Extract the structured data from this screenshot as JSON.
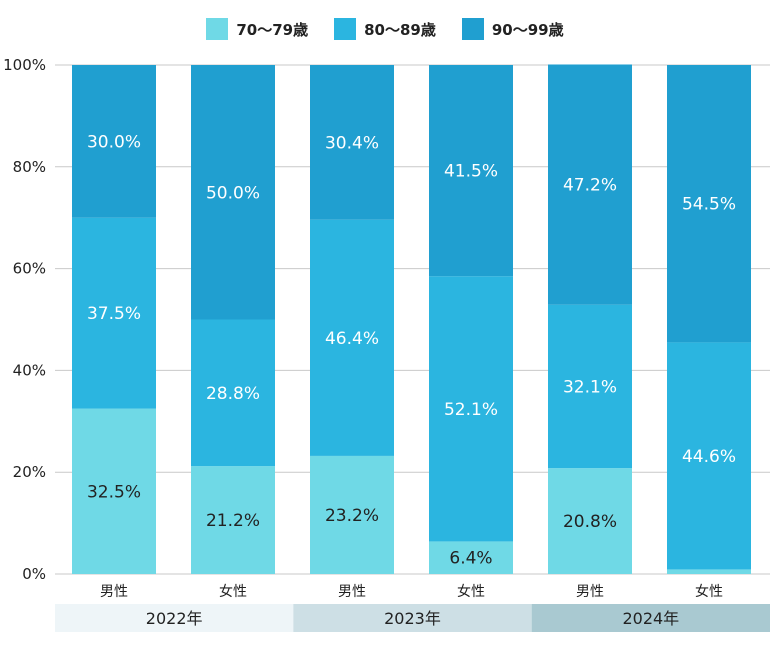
{
  "chart_data": {
    "type": "bar",
    "stacked": true,
    "legend_position": "top",
    "ylim": [
      0,
      100
    ],
    "yticks": [
      "0%",
      "20%",
      "40%",
      "60%",
      "80%",
      "100%"
    ],
    "categories": [
      "男性",
      "女性",
      "男性",
      "女性",
      "男性",
      "女性"
    ],
    "groups": [
      {
        "label": "2022年",
        "color": "#eef5f8"
      },
      {
        "label": "2023年",
        "color": "#cddfe5"
      },
      {
        "label": "2024年",
        "color": "#a9c9d1"
      }
    ],
    "series": [
      {
        "name": "70～79歳",
        "color": "#6fd9e6",
        "values": [
          32.5,
          21.2,
          23.2,
          6.4,
          20.8,
          0.9
        ],
        "labels": [
          "32.5%",
          "21.2%",
          "23.2%",
          "6.4%",
          "20.8%",
          ""
        ],
        "label_color": "#222222"
      },
      {
        "name": "80～89歳",
        "color": "#2bb5e0",
        "values": [
          37.5,
          28.8,
          46.4,
          52.1,
          32.1,
          44.6
        ],
        "labels": [
          "37.5%",
          "28.8%",
          "46.4%",
          "52.1%",
          "32.1%",
          "44.6%"
        ],
        "label_color": "#ffffff"
      },
      {
        "name": "90～99歳",
        "color": "#209fd0",
        "values": [
          30.0,
          50.0,
          30.4,
          41.5,
          47.2,
          54.5
        ],
        "labels": [
          "30.0%",
          "50.0%",
          "30.4%",
          "41.5%",
          "47.2%",
          "54.5%"
        ],
        "label_color": "#ffffff"
      }
    ]
  }
}
